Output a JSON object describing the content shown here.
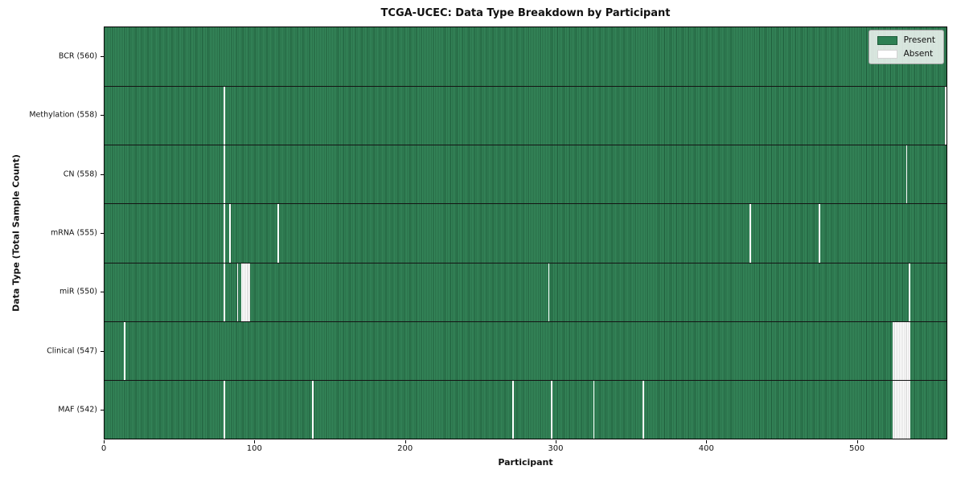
{
  "title": "TCGA-UCEC: Data Type Breakdown by Participant",
  "colors": {
    "present": "#2e8054",
    "present_stripe_light": "#35875a",
    "present_stripe_dark": "#1e5b3a",
    "absent": "#ffffff",
    "absent_run_edge": "#c6c6c6",
    "row_divider": "#141414",
    "spine": "#000000",
    "legend_border": "#a3a3a3"
  },
  "chart_data": {
    "type": "heatmap",
    "title": "TCGA-UCEC: Data Type Breakdown by Participant",
    "xlabel": "Participant",
    "ylabel": "Data Type (Total Sample Count)",
    "legend": [
      "Present",
      "Absent"
    ],
    "legend_position": "upper right",
    "xlim": [
      0,
      560
    ],
    "n_participants": 560,
    "x_ticks": [
      0,
      100,
      200,
      300,
      400,
      500
    ],
    "rows": [
      {
        "name": "BCR",
        "label": "BCR (560)",
        "count": 560,
        "absent_participants": []
      },
      {
        "name": "Methylation",
        "label": "Methylation (558)",
        "count": 558,
        "absent_participants": [
          79,
          559
        ]
      },
      {
        "name": "CN",
        "label": "CN (558)",
        "count": 558,
        "absent_participants": [
          79,
          533
        ]
      },
      {
        "name": "mRNA",
        "label": "mRNA (555)",
        "count": 555,
        "absent_participants": [
          79,
          83,
          115,
          429,
          475
        ]
      },
      {
        "name": "miR",
        "label": "miR (550)",
        "count": 550,
        "absent_participants": [
          79,
          88,
          91,
          92,
          93,
          94,
          95,
          96,
          295,
          535
        ]
      },
      {
        "name": "Clinical",
        "label": "Clinical (547)",
        "count": 547,
        "absent_participants": [
          13,
          524,
          525,
          526,
          527,
          528,
          529,
          530,
          531,
          532,
          533,
          534,
          535
        ]
      },
      {
        "name": "MAF",
        "label": "MAF (542)",
        "count": 542,
        "absent_participants": [
          79,
          138,
          271,
          297,
          325,
          358,
          524,
          525,
          526,
          527,
          528,
          529,
          530,
          531,
          532,
          533,
          534,
          535
        ]
      }
    ]
  }
}
